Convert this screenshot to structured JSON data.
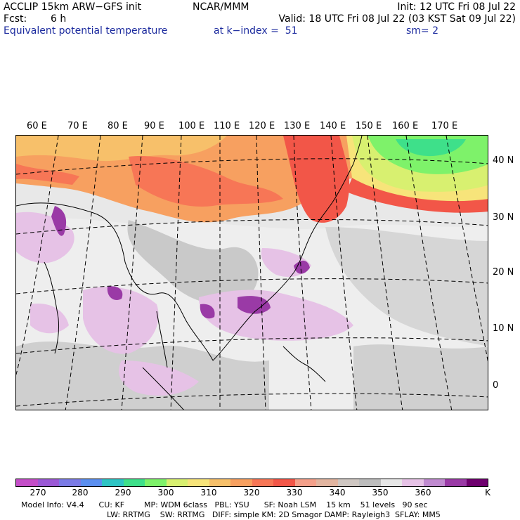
{
  "header": {
    "model_title": "ACCLIP 15km ARW−GFS init",
    "org": "NCAR/MMM",
    "init": "Init: 12 UTC Fri 08 Jul 22",
    "fcst_label": "Fcst:",
    "fcst_value": "6 h",
    "valid": "Valid: 18 UTC Fri 08 Jul 22 (03 KST Sat 09 Jul 22)",
    "field": "Equivalent potential temperature",
    "level": "at k−index =  51",
    "smoothing": "sm= 2"
  },
  "map": {
    "lon_labels": [
      "60 E",
      "70 E",
      "80 E",
      "90 E",
      "100 E",
      "110 E",
      "120 E",
      "130 E",
      "140 E",
      "150 E",
      "160 E",
      "170 E"
    ],
    "lat_labels": [
      "40 N",
      "30 N",
      "20 N",
      "10 N",
      "0"
    ]
  },
  "colorbar": {
    "colors": [
      "#c44ec8",
      "#9b59d6",
      "#7b7be6",
      "#5b8ff0",
      "#2ec4c4",
      "#3ee08a",
      "#7ef26a",
      "#d8f070",
      "#f7e47a",
      "#f7c06a",
      "#f7a060",
      "#f77656",
      "#f25648",
      "#f4a08a",
      "#e2b5a0",
      "#cfc7c2",
      "#bdbdbd",
      "#e7e7e7",
      "#e6c2e6",
      "#c08ad0",
      "#9a3aa6",
      "#6e006e"
    ],
    "labels": [
      "270",
      "280",
      "290",
      "300",
      "310",
      "320",
      "330",
      "340",
      "350",
      "360",
      "K"
    ]
  },
  "footer": {
    "line1": "Model Info: V4.4      CU: KF        MP: WDM 6class   PBL: YSU      SF: Noah LSM    15 km    51 levels   90 sec",
    "line2": "LW: RRTMG    SW: RRTMG   DIFF: simple KM: 2D Smagor DAMP: Rayleigh3  SFLAY: MM5"
  }
}
